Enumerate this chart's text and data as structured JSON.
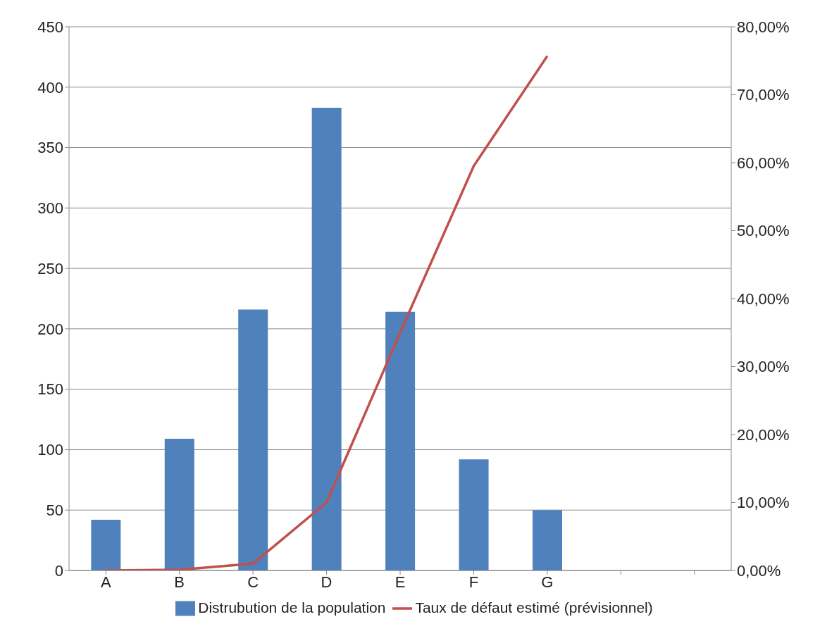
{
  "chart_data": {
    "type": "bar",
    "categories": [
      "A",
      "B",
      "C",
      "D",
      "E",
      "F",
      "G",
      null,
      null
    ],
    "series": [
      {
        "name": "Distrubution de la population",
        "color": "#4f81bd",
        "values": [
          42,
          109,
          216,
          383,
          214,
          92,
          50,
          null,
          null
        ]
      },
      {
        "name": "Taux de défaut estimé (prévisionnel)",
        "type": "line",
        "axis": "y2",
        "color": "#c0504d",
        "values": [
          0,
          0.1,
          1,
          10,
          35,
          59.5,
          75.7,
          null,
          null
        ]
      }
    ],
    "ylim": [
      0,
      450
    ],
    "yticks": [
      0,
      50,
      100,
      150,
      200,
      250,
      300,
      350,
      400,
      450
    ],
    "y2lim": [
      0,
      80
    ],
    "y2ticks": [
      {
        "value": 0,
        "label": "0,00%"
      },
      {
        "value": 10,
        "label": "10,00%"
      },
      {
        "value": 20,
        "label": "20,00%"
      },
      {
        "value": 30,
        "label": "30,00%"
      },
      {
        "value": 40,
        "label": "40,00%"
      },
      {
        "value": 50,
        "label": "50,00%"
      },
      {
        "value": 60,
        "label": "60,00%"
      },
      {
        "value": 70,
        "label": "70,00%"
      },
      {
        "value": 80,
        "label": "80,00%"
      }
    ],
    "grid": "y",
    "legend": "bottom",
    "marker": "none",
    "line_style": "solid"
  }
}
